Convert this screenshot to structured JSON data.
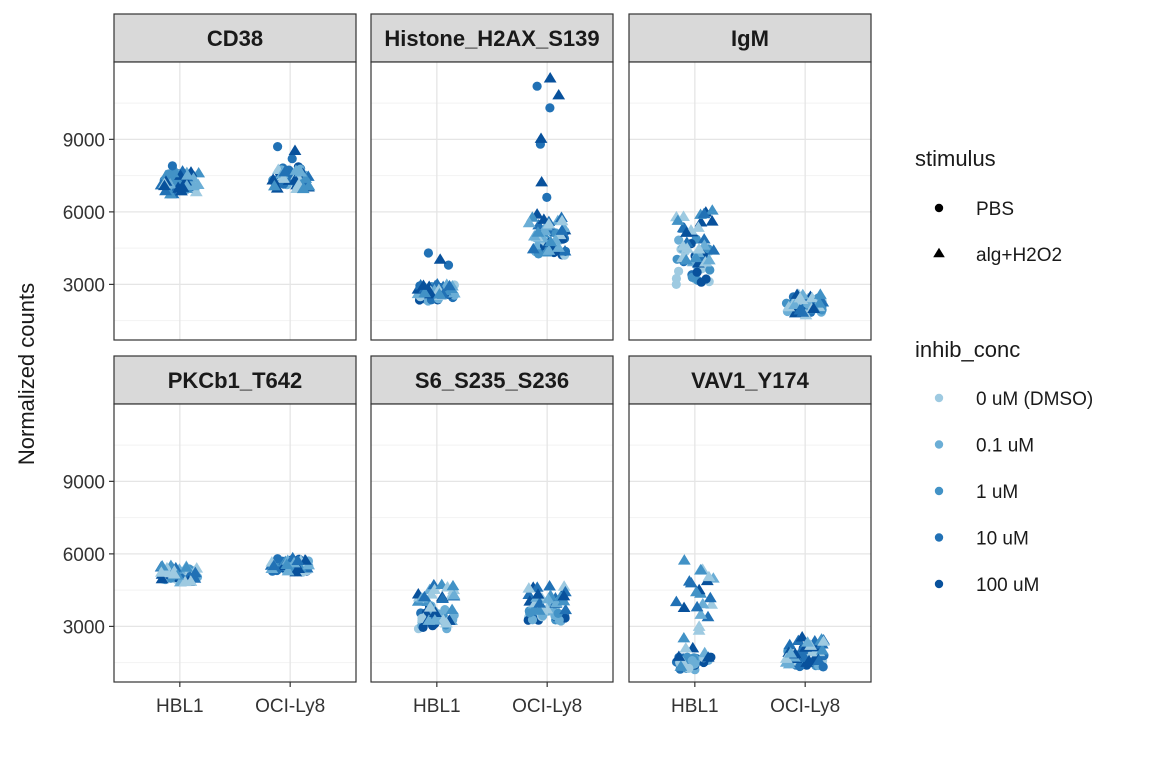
{
  "chart_data": {
    "type": "scatter",
    "ylabel": "Normalized counts",
    "xlabel": "",
    "categories": [
      "HBL1",
      "OCI-Ly8"
    ],
    "ylim": [
      700,
      12200
    ],
    "yticks": [
      3000,
      6000,
      9000
    ],
    "grid": true,
    "legend_position": "right",
    "legends": [
      {
        "title": "stimulus",
        "entries": [
          {
            "label": "PBS",
            "shape": "circle"
          },
          {
            "label": "alg+H2O2",
            "shape": "triangle"
          }
        ]
      },
      {
        "title": "inhib_conc",
        "entries": [
          {
            "label": "0 uM (DMSO)",
            "color": "#9ecae1"
          },
          {
            "label": "0.1 uM",
            "color": "#6baed6"
          },
          {
            "label": "1 uM",
            "color": "#4292c6"
          },
          {
            "label": "10 uM",
            "color": "#2171b5"
          },
          {
            "label": "100 uM",
            "color": "#08519c"
          }
        ]
      }
    ],
    "panels": [
      {
        "title": "CD38",
        "groups": {
          "HBL1": {
            "PBS": [
              6900,
              7600
            ],
            "alg+H2O2": [
              6700,
              7800
            ],
            "high": [
              7900
            ]
          },
          "OCI-Ly8": {
            "PBS": [
              7100,
              7900
            ],
            "alg+H2O2": [
              6900,
              7800
            ],
            "high": [
              8200,
              8500,
              8700
            ]
          }
        }
      },
      {
        "title": "Histone_H2AX_S139",
        "groups": {
          "HBL1": {
            "PBS": [
              2300,
              3000
            ],
            "alg+H2O2": [
              2500,
              3000
            ],
            "high": [
              3800,
              4000,
              4300
            ]
          },
          "OCI-Ly8": {
            "PBS": [
              4200,
              5200
            ],
            "alg+H2O2": [
              4300,
              6000
            ],
            "high": [
              6600,
              7200,
              8800,
              9000,
              10300,
              10800,
              11200,
              11500
            ]
          }
        }
      },
      {
        "title": "IgM",
        "groups": {
          "HBL1": {
            "PBS": [
              3000,
              5000
            ],
            "alg+H2O2": [
              3800,
              6100
            ],
            "high": []
          },
          "OCI-Ly8": {
            "PBS": [
              1800,
              2500
            ],
            "alg+H2O2": [
              1700,
              2600
            ],
            "high": []
          }
        }
      },
      {
        "title": "PKCb1_T642",
        "groups": {
          "HBL1": {
            "PBS": [
              4900,
              5400
            ],
            "alg+H2O2": [
              4800,
              5500
            ],
            "high": []
          },
          "OCI-Ly8": {
            "PBS": [
              5200,
              5800
            ],
            "alg+H2O2": [
              5200,
              5800
            ],
            "high": []
          }
        }
      },
      {
        "title": "S6_S235_S236",
        "groups": {
          "HBL1": {
            "PBS": [
              2900,
              3900
            ],
            "alg+H2O2": [
              3000,
              4700
            ],
            "high": []
          },
          "OCI-Ly8": {
            "PBS": [
              3200,
              3700
            ],
            "alg+H2O2": [
              3600,
              4700
            ],
            "high": []
          }
        }
      },
      {
        "title": "VAV1_Y174",
        "groups": {
          "HBL1": {
            "PBS": [
              1200,
              1800
            ],
            "alg+H2O2": [
              1300,
              5800
            ],
            "high": []
          },
          "OCI-Ly8": {
            "PBS": [
              1300,
              2200
            ],
            "alg+H2O2": [
              1400,
              2700
            ],
            "high": []
          }
        }
      }
    ]
  }
}
